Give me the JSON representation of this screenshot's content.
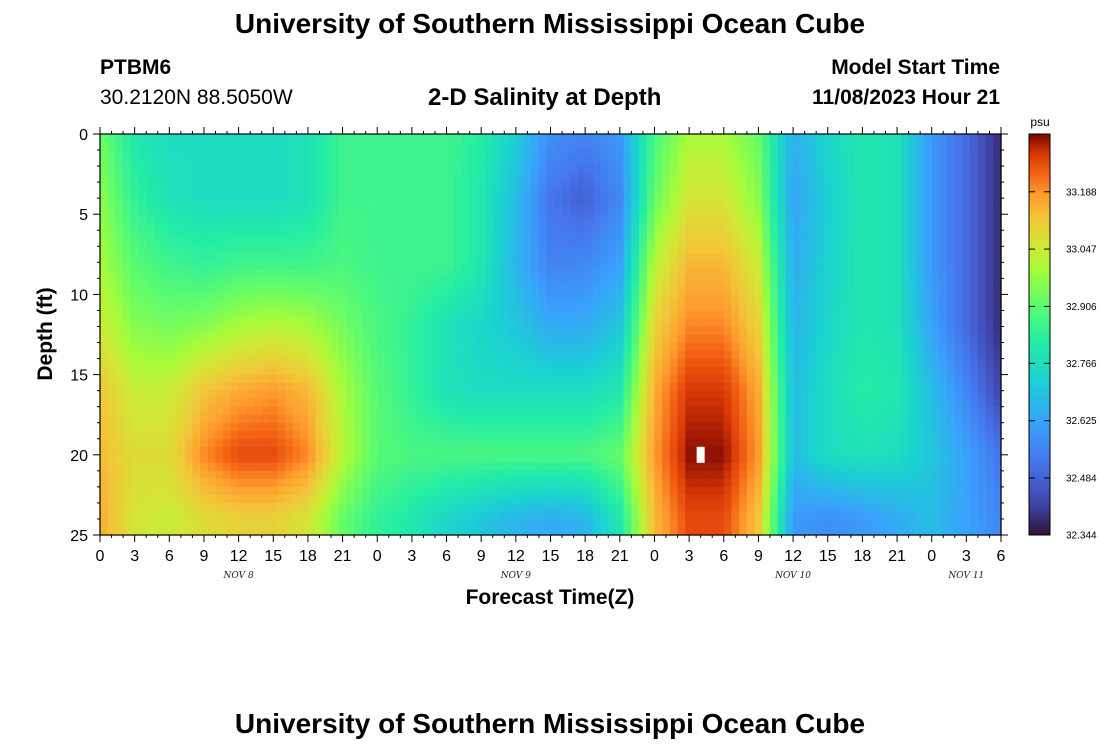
{
  "header": {
    "title": "University of Southern Mississippi Ocean Cube",
    "station": "PTBM6",
    "coords": "30.2120N  88.5050W",
    "subtitle": "2-D Salinity at Depth",
    "model_start_label": "Model Start Time",
    "model_start_value": "11/08/2023 Hour 21"
  },
  "footer": {
    "title": "University of Southern Mississippi Ocean Cube"
  },
  "chart_data": {
    "type": "heatmap",
    "title": "2-D Salinity at Depth",
    "xlabel": "Forecast Time(Z)",
    "ylabel": "Depth (ft)",
    "x_range_hours": [
      0,
      78
    ],
    "y_range_ft": [
      0,
      25
    ],
    "y_inverted": true,
    "x_tick_labels": [
      "0",
      "3",
      "6",
      "9",
      "12",
      "15",
      "18",
      "21",
      "0",
      "3",
      "6",
      "9",
      "12",
      "15",
      "18",
      "21",
      "0",
      "3",
      "6",
      "9",
      "12",
      "15",
      "18",
      "21",
      "0",
      "3",
      "6"
    ],
    "y_tick_labels": [
      "0",
      "5",
      "10",
      "15",
      "20",
      "25"
    ],
    "date_labels": [
      {
        "label": "NOV 8",
        "hour": 12
      },
      {
        "label": "NOV 9",
        "hour": 36
      },
      {
        "label": "NOV 10",
        "hour": 60
      },
      {
        "label": "NOV 11",
        "hour": 75
      }
    ],
    "colorbar": {
      "unit": "psu",
      "min": 32.344,
      "max": 33.33,
      "tick_labels": [
        "33.188",
        "33.047",
        "32.906",
        "32.766",
        "32.625",
        "32.484",
        "32.344"
      ]
    },
    "field_control_points": {
      "hours": [
        0,
        3,
        6,
        9,
        12,
        15,
        18,
        21,
        24,
        27,
        30,
        33,
        36,
        39,
        42,
        45,
        48,
        51,
        54,
        57,
        60,
        63,
        66,
        69,
        72,
        75,
        78
      ],
      "depths_ft": [
        0,
        4,
        8,
        12,
        16,
        20,
        24
      ],
      "salinity_psu": [
        [
          32.93,
          32.8,
          32.76,
          32.76,
          32.76,
          32.76,
          32.78,
          32.86,
          32.86,
          32.86,
          32.86,
          32.82,
          32.72,
          32.58,
          32.55,
          32.6,
          32.88,
          33.0,
          33.0,
          32.92,
          32.65,
          32.74,
          32.8,
          32.78,
          32.6,
          32.5,
          32.38
        ],
        [
          32.97,
          32.84,
          32.78,
          32.76,
          32.76,
          32.76,
          32.78,
          32.86,
          32.86,
          32.86,
          32.86,
          32.8,
          32.68,
          32.52,
          32.48,
          32.56,
          32.92,
          33.06,
          33.06,
          32.96,
          32.62,
          32.72,
          32.8,
          32.78,
          32.6,
          32.5,
          32.38
        ],
        [
          33.0,
          32.9,
          32.86,
          32.84,
          32.86,
          32.86,
          32.86,
          32.88,
          32.86,
          32.86,
          32.86,
          32.8,
          32.66,
          32.55,
          32.56,
          32.62,
          33.02,
          33.14,
          33.14,
          33.04,
          32.64,
          32.73,
          32.8,
          32.78,
          32.6,
          32.5,
          32.38
        ],
        [
          33.05,
          32.96,
          32.94,
          32.96,
          33.0,
          33.02,
          33.0,
          32.94,
          32.88,
          32.84,
          32.78,
          32.74,
          32.7,
          32.64,
          32.64,
          32.7,
          33.1,
          33.2,
          33.2,
          33.1,
          32.66,
          32.74,
          32.8,
          32.78,
          32.62,
          32.5,
          32.38
        ],
        [
          33.12,
          33.04,
          33.04,
          33.12,
          33.16,
          33.18,
          33.14,
          33.0,
          32.9,
          32.84,
          32.78,
          32.76,
          32.76,
          32.76,
          32.76,
          32.8,
          33.16,
          33.28,
          33.28,
          33.16,
          32.68,
          32.76,
          32.82,
          32.8,
          32.68,
          32.56,
          32.42
        ],
        [
          33.14,
          33.08,
          33.08,
          33.2,
          33.26,
          33.26,
          33.2,
          33.02,
          32.9,
          32.88,
          32.88,
          32.88,
          32.88,
          32.88,
          32.88,
          32.92,
          33.18,
          33.32,
          33.32,
          33.18,
          32.68,
          32.76,
          32.78,
          32.76,
          32.7,
          32.62,
          32.52
        ],
        [
          33.16,
          33.06,
          33.04,
          33.08,
          33.1,
          33.1,
          33.06,
          32.92,
          32.84,
          32.8,
          32.74,
          32.7,
          32.66,
          32.64,
          32.66,
          32.8,
          33.14,
          33.26,
          33.26,
          33.12,
          32.6,
          32.58,
          32.6,
          32.64,
          32.68,
          32.62,
          32.56
        ]
      ]
    },
    "masked_cell": {
      "hour": 52,
      "depth_ft": 20
    }
  }
}
